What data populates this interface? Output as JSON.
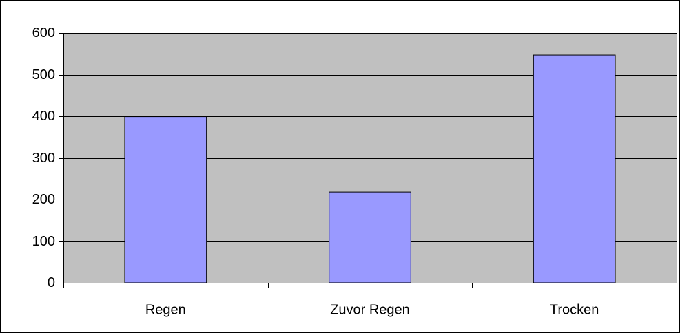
{
  "chart_data": {
    "type": "bar",
    "categories": [
      "Regen",
      "Zuvor Regen",
      "Trocken"
    ],
    "values": [
      399,
      218,
      547
    ],
    "color": "#9999ff",
    "ylim": [
      0,
      600
    ],
    "yticks": [
      0,
      100,
      200,
      300,
      400,
      500,
      600
    ],
    "grid": true
  }
}
